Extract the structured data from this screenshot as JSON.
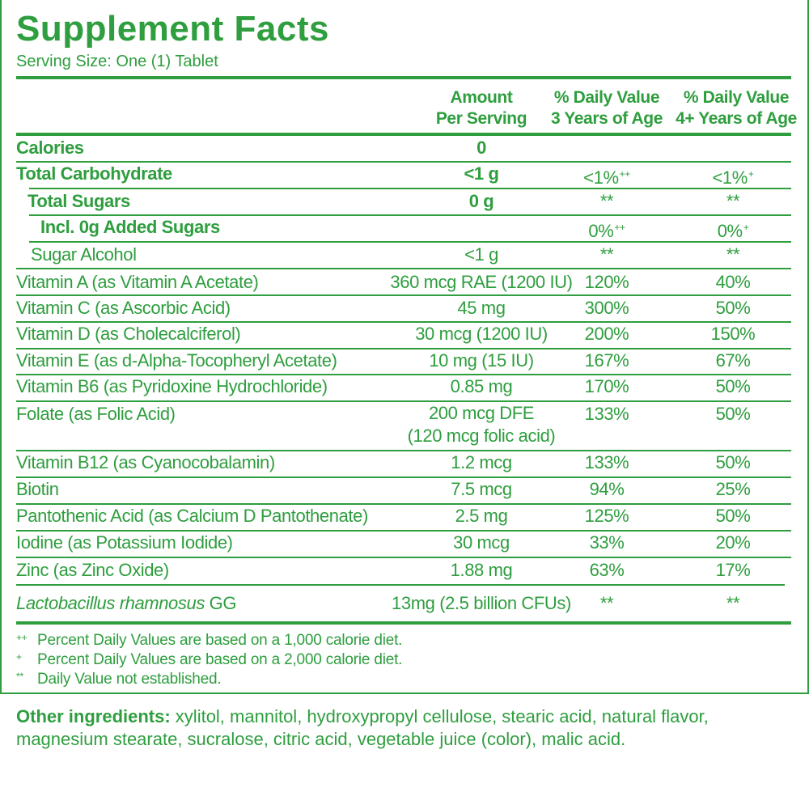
{
  "title": "Supplement Facts",
  "serving_size": "Serving Size: One (1) Tablet",
  "headers": {
    "amount_line1": "Amount",
    "amount_line2": "Per Serving",
    "dv3_line1": "% Daily Value",
    "dv3_line2": "3 Years of Age",
    "dv4_line1": "% Daily Value",
    "dv4_line2": "4+ Years of Age"
  },
  "rows": [
    {
      "name": "Calories",
      "amount": "0",
      "dv3": "",
      "dv3_sup": "",
      "dv4": "",
      "dv4_sup": ""
    },
    {
      "name": "Total Carbohydrate",
      "amount": "<1 g",
      "dv3": "<1%",
      "dv3_sup": "++",
      "dv4": "<1%",
      "dv4_sup": "+"
    },
    {
      "name": "Total Sugars",
      "amount": "0 g",
      "dv3": "**",
      "dv3_sup": "",
      "dv4": "**",
      "dv4_sup": ""
    },
    {
      "name": "Incl. 0g Added Sugars",
      "amount": "",
      "dv3": "0%",
      "dv3_sup": "++",
      "dv4": "0%",
      "dv4_sup": "+"
    },
    {
      "name": "Sugar Alcohol",
      "amount": "<1 g",
      "dv3": "**",
      "dv3_sup": "",
      "dv4": "**",
      "dv4_sup": ""
    },
    {
      "name": "Vitamin A (as Vitamin A Acetate)",
      "amount": "360 mcg RAE (1200 IU)",
      "dv3": "120%",
      "dv3_sup": "",
      "dv4": "40%",
      "dv4_sup": ""
    },
    {
      "name": "Vitamin C (as Ascorbic Acid)",
      "amount": "45 mg",
      "dv3": "300%",
      "dv3_sup": "",
      "dv4": "50%",
      "dv4_sup": ""
    },
    {
      "name": "Vitamin D (as Cholecalciferol)",
      "amount": "30 mcg (1200 IU)",
      "dv3": "200%",
      "dv3_sup": "",
      "dv4": "150%",
      "dv4_sup": ""
    },
    {
      "name": "Vitamin E (as d-Alpha-Tocopheryl Acetate)",
      "amount": "10 mg (15 IU)",
      "dv3": "167%",
      "dv3_sup": "",
      "dv4": "67%",
      "dv4_sup": ""
    },
    {
      "name": "Vitamin B6 (as Pyridoxine Hydrochloride)",
      "amount": "0.85 mg",
      "dv3": "170%",
      "dv3_sup": "",
      "dv4": "50%",
      "dv4_sup": ""
    },
    {
      "name": "Folate (as Folic Acid)",
      "amount": "200 mcg DFE",
      "amount2": "(120 mcg folic acid)",
      "dv3": "133%",
      "dv3_sup": "",
      "dv4": "50%",
      "dv4_sup": ""
    },
    {
      "name": "Vitamin B12 (as Cyanocobalamin)",
      "amount": "1.2 mcg",
      "dv3": "133%",
      "dv3_sup": "",
      "dv4": "50%",
      "dv4_sup": ""
    },
    {
      "name": "Biotin",
      "amount": "7.5 mcg",
      "dv3": "94%",
      "dv3_sup": "",
      "dv4": "25%",
      "dv4_sup": ""
    },
    {
      "name": "Pantothenic Acid (as Calcium D Pantothenate)",
      "amount": "2.5 mg",
      "dv3": "125%",
      "dv3_sup": "",
      "dv4": "50%",
      "dv4_sup": ""
    },
    {
      "name": "Iodine (as Potassium Iodide)",
      "amount": "30 mcg",
      "dv3": "33%",
      "dv3_sup": "",
      "dv4": "20%",
      "dv4_sup": ""
    },
    {
      "name": "Zinc (as Zinc Oxide)",
      "amount": "1.88 mg",
      "dv3": "63%",
      "dv3_sup": "",
      "dv4": "17%",
      "dv4_sup": ""
    },
    {
      "name_italic": "Lactobacillus rhamnosus",
      "name": " GG",
      "amount": "13mg (2.5 billion CFUs)",
      "dv3": "**",
      "dv3_sup": "",
      "dv4": "**",
      "dv4_sup": ""
    }
  ],
  "footnotes": [
    {
      "symbol": "++",
      "text": "Percent Daily Values are based on a 1,000 calorie diet."
    },
    {
      "symbol": "+",
      "text": "Percent Daily Values are based on a 2,000 calorie diet."
    },
    {
      "symbol": "**",
      "text": "Daily Value not established."
    }
  ],
  "other_ingredients": {
    "label": "Other ingredients:",
    "text": " xylitol, mannitol, hydroxypropyl cellulose, stearic acid, natural flavor, magnesium stearate, sucralose, citric acid, vegetable juice (color), malic acid."
  },
  "colors": {
    "brand_green": "#2e9e3e",
    "background": "#ffffff"
  }
}
